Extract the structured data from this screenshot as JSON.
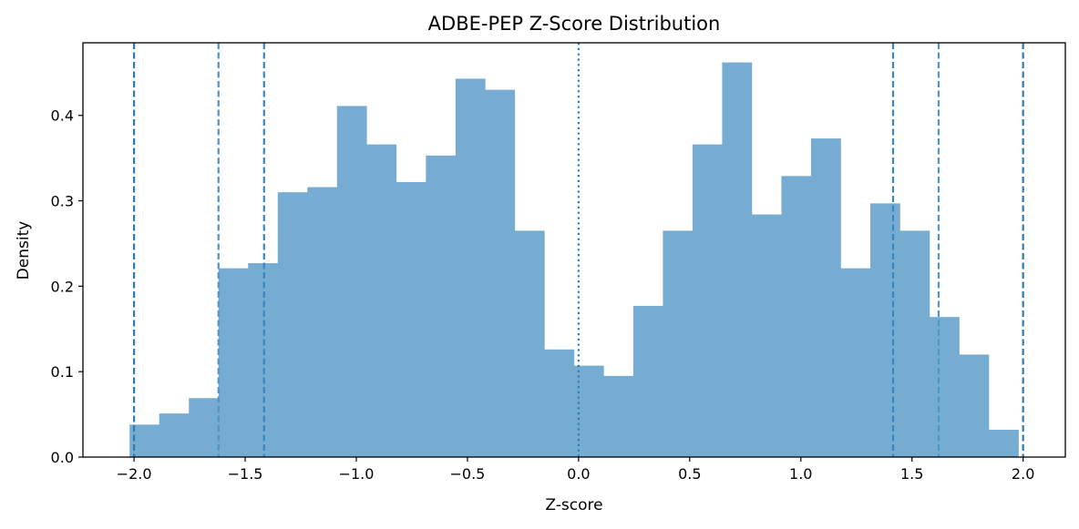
{
  "chart_data": {
    "type": "bar",
    "title": "ADBE-PEP Z-Score Distribution",
    "xlabel": "Z-score",
    "ylabel": "Density",
    "xlim": [
      -2.23,
      2.19
    ],
    "ylim": [
      0,
      0.485
    ],
    "x_ticks": [
      -2.0,
      -1.5,
      -1.0,
      -0.5,
      0.0,
      0.5,
      1.0,
      1.5,
      2.0
    ],
    "x_tick_labels": [
      "−2.0",
      "−1.5",
      "−1.0",
      "−0.5",
      "0.0",
      "0.5",
      "1.0",
      "1.5",
      "2.0"
    ],
    "y_ticks": [
      0.0,
      0.1,
      0.2,
      0.3,
      0.4
    ],
    "y_tick_labels": [
      "0.0",
      "0.1",
      "0.2",
      "0.3",
      "0.4"
    ],
    "bin_start": -2.02,
    "bin_width": 0.1333,
    "values": [
      0.038,
      0.051,
      0.069,
      0.221,
      0.227,
      0.31,
      0.316,
      0.411,
      0.366,
      0.322,
      0.353,
      0.443,
      0.43,
      0.265,
      0.126,
      0.107,
      0.095,
      0.177,
      0.265,
      0.366,
      0.462,
      0.284,
      0.329,
      0.373,
      0.221,
      0.297,
      0.265,
      0.164,
      0.12,
      0.032
    ],
    "bar_color": "#76acd2",
    "reference_lines": [
      {
        "x": -2.0,
        "style": "dashed",
        "color": "#2d7bb6"
      },
      {
        "x": -1.62,
        "style": "dashed",
        "color": "#4f96c8"
      },
      {
        "x": -1.415,
        "style": "dashed",
        "color": "#3a86bf"
      },
      {
        "x": 0.0,
        "style": "dotted",
        "color": "#2d7bb6"
      },
      {
        "x": 1.415,
        "style": "dashed",
        "color": "#3a86bf"
      },
      {
        "x": 1.62,
        "style": "dashed",
        "color": "#4f96c8"
      },
      {
        "x": 2.0,
        "style": "dashed",
        "color": "#2d7bb6"
      }
    ],
    "grid": false,
    "legend": "none"
  }
}
